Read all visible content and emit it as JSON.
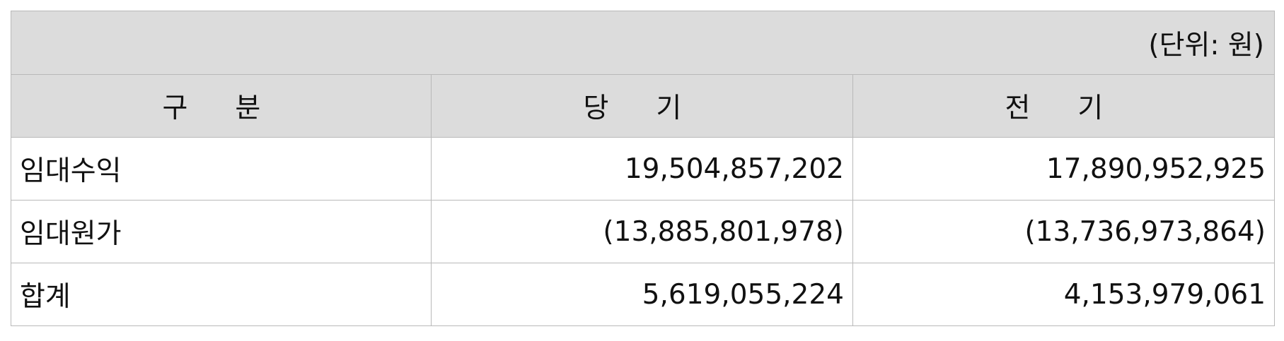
{
  "unit_label": "(단위: 원)",
  "columns": [
    "구 분",
    "당 기",
    "전 기"
  ],
  "rows": [
    {
      "label": "임대수익",
      "current": "19,504,857,202",
      "prior": "17,890,952,925"
    },
    {
      "label": "임대원가",
      "current": "(13,885,801,978)",
      "prior": "(13,736,973,864)"
    },
    {
      "label": "합계",
      "current": "5,619,055,224",
      "prior": "4,153,979,061"
    }
  ]
}
